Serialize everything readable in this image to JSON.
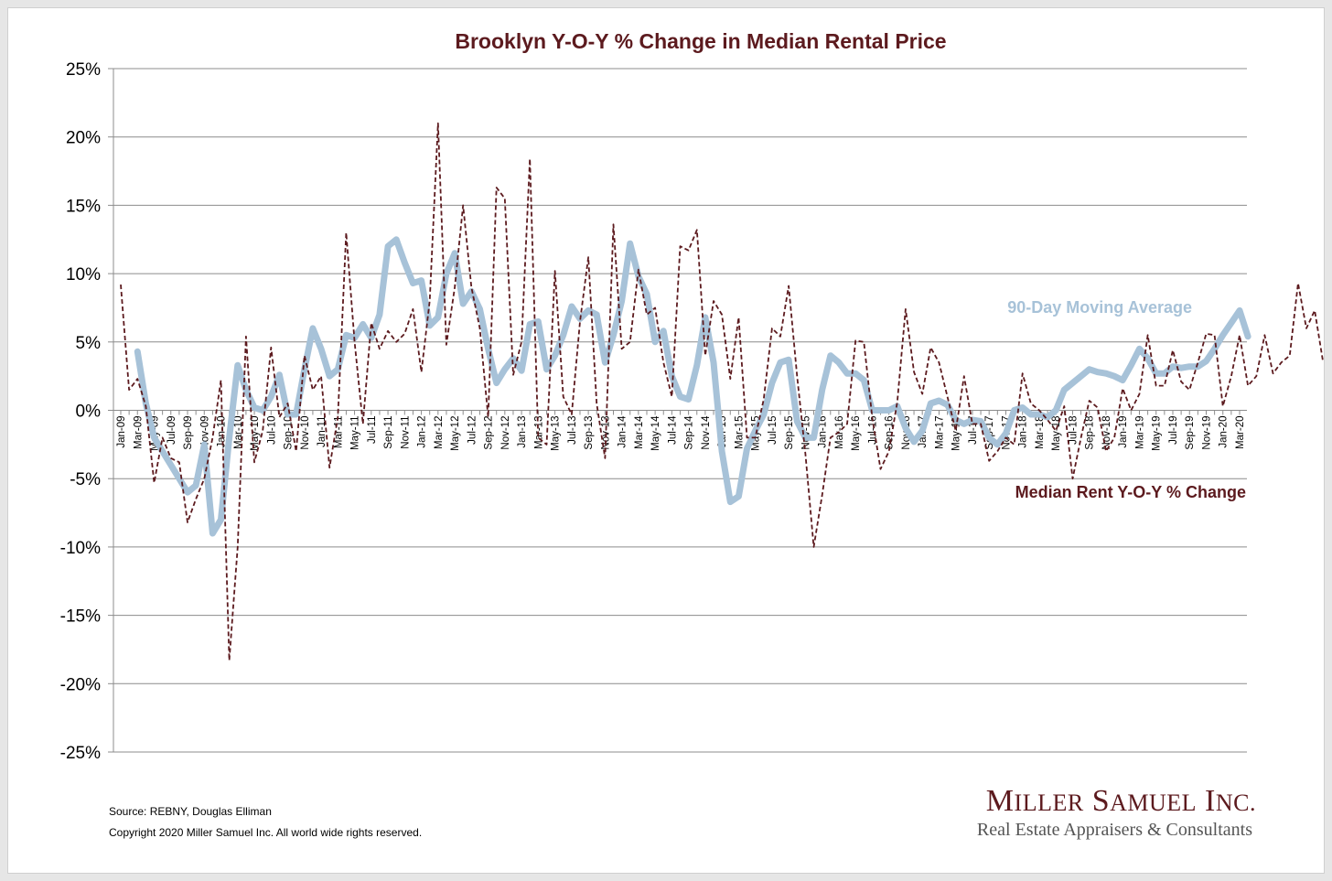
{
  "chart_data": {
    "type": "line",
    "title": "Brooklyn Y-O-Y % Change in Median Rental Price",
    "xlabel": "",
    "ylabel": "",
    "ylim": [
      -25,
      25
    ],
    "yticks": [
      25,
      20,
      15,
      10,
      5,
      0,
      -5,
      -10,
      -15,
      -20,
      -25
    ],
    "ytick_labels": [
      "25%",
      "20%",
      "15%",
      "10%",
      "5%",
      "0%",
      "-5%",
      "-10%",
      "-15%",
      "-20%",
      "-25%"
    ],
    "grid": true,
    "x_start": "Jan-09",
    "x_count": 135,
    "xtick_labels": [
      "Jan-09",
      "Mar-09",
      "May-09",
      "Jul-09",
      "Sep-09",
      "Nov-09",
      "Jan-10",
      "Mar-10",
      "May-10",
      "Jul-10",
      "Sep-10",
      "Nov-10",
      "Jan-11",
      "Mar-11",
      "May-11",
      "Jul-11",
      "Sep-11",
      "Nov-11",
      "Jan-12",
      "Mar-12",
      "May-12",
      "Jul-12",
      "Sep-12",
      "Nov-12",
      "Jan-13",
      "Mar-13",
      "May-13",
      "Jul-13",
      "Sep-13",
      "Nov-13",
      "Jan-14",
      "Mar-14",
      "May-14",
      "Jul-14",
      "Sep-14",
      "Nov-14",
      "Jan-15",
      "Mar-15",
      "May-15",
      "Jul-15",
      "Sep-15",
      "Nov-15",
      "Jan-16",
      "Mar-16",
      "May-16",
      "Jul-16",
      "Sep-16",
      "Nov-16",
      "Jan-17",
      "Mar-17",
      "May-17",
      "Jul-17",
      "Sep-17",
      "Nov-17",
      "Jan-18",
      "Mar-18",
      "May-18",
      "Jul-18",
      "Sep-18",
      "Nov-18",
      "Jan-19",
      "Mar-19",
      "May-19",
      "Jul-19",
      "Sep-19",
      "Nov-19",
      "Jan-20",
      "Mar-20"
    ],
    "series": [
      {
        "name": "Median Rent Y-O-Y % Change",
        "color": "#5c1a1e",
        "style": "dashed",
        "start_index": 0,
        "values": [
          9.2,
          1.5,
          2.3,
          0.3,
          -5.3,
          -2.0,
          -3.5,
          -3.8,
          -8.2,
          -6.5,
          -5.0,
          -2.0,
          2.2,
          -18.3,
          -10.0,
          5.4,
          -3.8,
          -1.5,
          4.6,
          -0.5,
          0.5,
          -3.0,
          4.0,
          1.5,
          2.5,
          -4.2,
          -0.5,
          13.0,
          5.0,
          -1.0,
          6.4,
          4.5,
          5.8,
          5.0,
          5.6,
          7.4,
          2.8,
          8.0,
          21.0,
          4.8,
          9.0,
          15.0,
          9.0,
          6.0,
          -0.5,
          16.3,
          15.5,
          2.6,
          5.0,
          18.4,
          -2.0,
          -2.5,
          10.2,
          1.0,
          -0.3,
          6.5,
          11.2,
          0.5,
          -3.5,
          13.6,
          4.5,
          5.0,
          10.3,
          7.0,
          7.5,
          3.5,
          1.0,
          12.0,
          11.7,
          13.2,
          4.0,
          8.0,
          7.0,
          2.3,
          6.8,
          -2.0,
          -2.0,
          0.8,
          6.0,
          5.4,
          9.1,
          2.5,
          -3.2,
          -10.0,
          -6.2,
          -2.0,
          -1.6,
          -1.0,
          5.1,
          5.0,
          -0.5,
          -4.3,
          -3.0,
          0.6,
          7.4,
          2.8,
          1.2,
          4.6,
          3.5,
          1.0,
          -1.5,
          2.5,
          -1.0,
          -1.0,
          -3.7,
          -3.0,
          -2.0,
          -2.5,
          2.7,
          0.5,
          0.0,
          -0.7,
          -1.5,
          0.3,
          -5.0,
          -2.0,
          0.7,
          0.2,
          -3.0,
          -2.0,
          1.6,
          0.0,
          1.2,
          5.5,
          1.8,
          1.8,
          4.4,
          2.1,
          1.5,
          3.5,
          5.6,
          5.5,
          0.3,
          2.5,
          5.5,
          1.8,
          2.5,
          5.5,
          2.7,
          3.5,
          4.0,
          9.3,
          6.0,
          7.3,
          3.5
        ]
      },
      {
        "name": "90-Day Moving Average",
        "color": "#a7c2d8",
        "style": "solid",
        "start_index": 2,
        "values": [
          4.3,
          0.5,
          -2.0,
          -3.0,
          -4.0,
          -5.0,
          -6.0,
          -5.5,
          -2.5,
          -9.0,
          -8.0,
          -2.0,
          3.3,
          1.5,
          0.2,
          0.0,
          1.0,
          2.6,
          -0.3,
          -0.3,
          3.0,
          6.0,
          4.5,
          2.5,
          3.0,
          5.5,
          5.3,
          6.3,
          5.3,
          7.0,
          12.0,
          12.5,
          10.8,
          9.3,
          9.5,
          6.2,
          6.8,
          10.0,
          11.5,
          7.8,
          8.7,
          7.4,
          4.5,
          2.0,
          3.0,
          3.8,
          2.9,
          6.3,
          6.5,
          3.0,
          4.0,
          5.5,
          7.6,
          6.7,
          7.3,
          7.0,
          3.5,
          5.5,
          8.0,
          12.2,
          9.8,
          8.5,
          5.0,
          5.8,
          2.5,
          1.0,
          0.8,
          3.3,
          6.8,
          3.5,
          -3.0,
          -6.7,
          -6.3,
          -2.8,
          -1.5,
          -0.3,
          2.0,
          3.5,
          3.7,
          -0.8,
          -2.0,
          -2.0,
          1.5,
          4.0,
          3.5,
          2.7,
          2.7,
          2.2,
          0.0,
          0.0,
          0.0,
          0.3,
          -1.3,
          -2.3,
          -1.5,
          0.5,
          0.7,
          0.4,
          -0.7,
          -1.0,
          -0.7,
          -0.8,
          -2.0,
          -2.5,
          -1.7,
          0.0,
          0.2,
          -0.3,
          -0.3,
          -0.5,
          0.0,
          1.5,
          2.0,
          2.5,
          3.0,
          2.8,
          2.7,
          2.5,
          2.2,
          3.3,
          4.5,
          3.8,
          2.7,
          2.7,
          3.2,
          3.1,
          3.2,
          3.2,
          3.6,
          4.5,
          5.5,
          6.4,
          7.3,
          5.4
        ]
      }
    ],
    "legend": [
      {
        "label": "90-Day Moving Average",
        "color": "#a7c2d8",
        "placement": "right, above line"
      },
      {
        "label": "Median Rent Y-O-Y % Change",
        "color": "#5c1a1e",
        "placement": "right, below line"
      }
    ]
  },
  "footer": {
    "source": "Source: REBNY, Douglas Elliman",
    "copyright": "Copyright 2020 Miller Samuel Inc.  All world wide rights reserved."
  },
  "brand": {
    "name": "Miller Samuel Inc.",
    "tagline": "Real Estate Appraisers & Consultants",
    "color": "#5c1a1e"
  }
}
